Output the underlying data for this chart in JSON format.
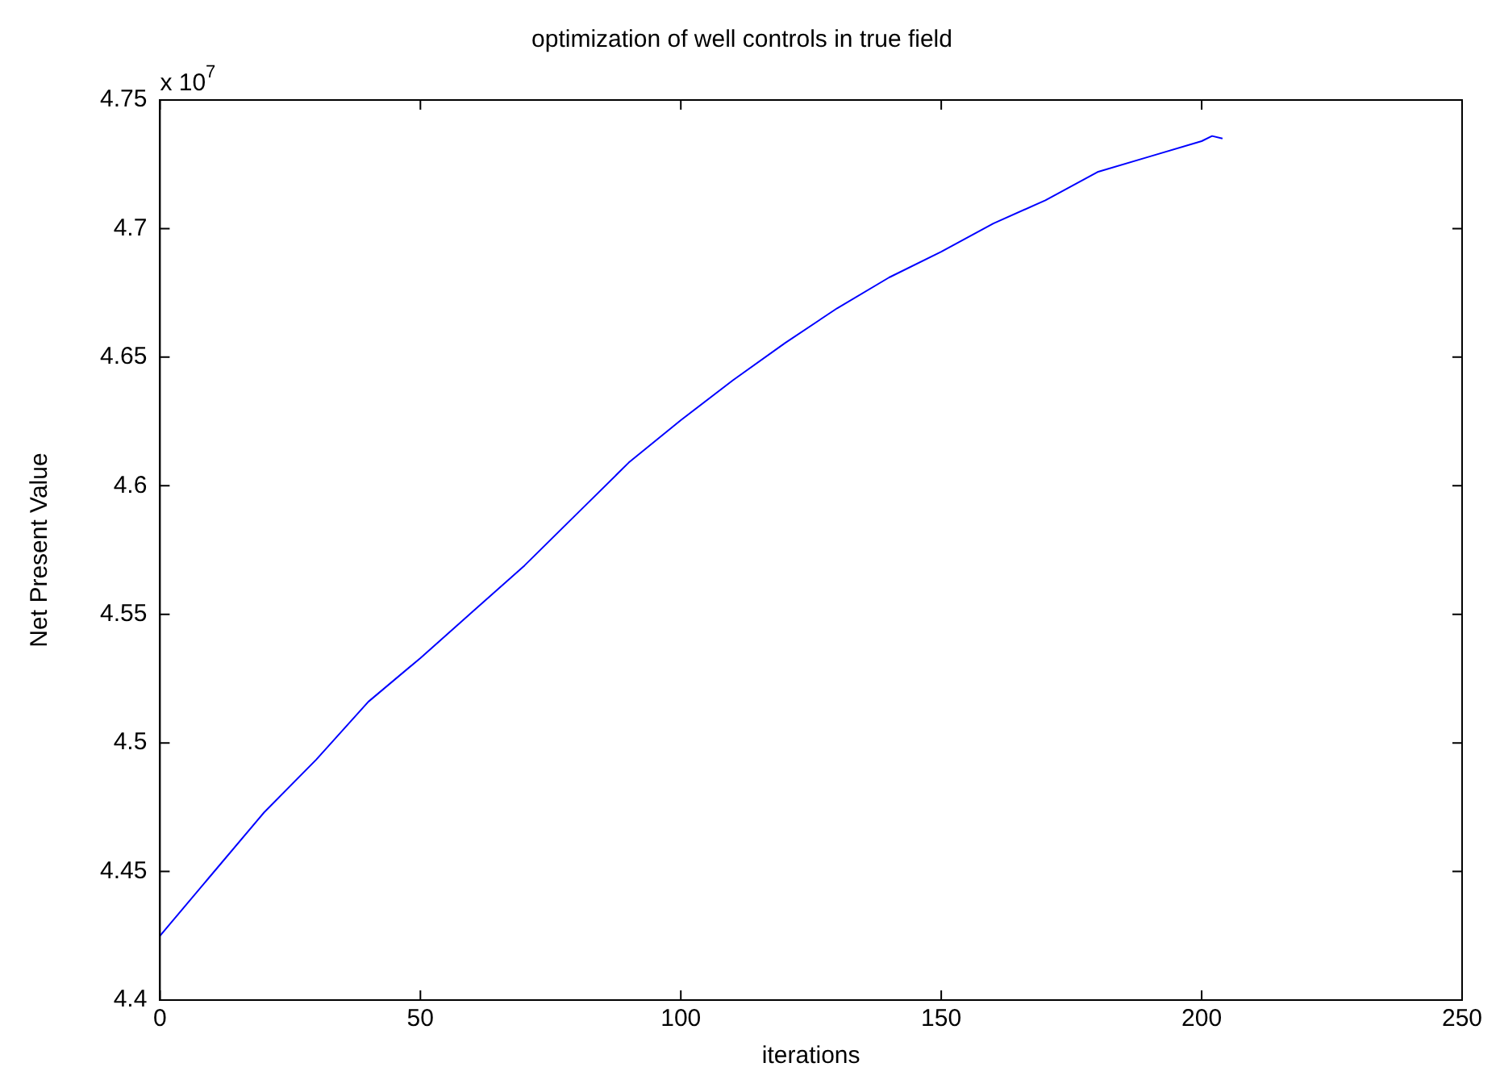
{
  "chart_data": {
    "type": "line",
    "title": "optimization of well controls in true field",
    "xlabel": "iterations",
    "ylabel": "Net Present Value",
    "annotations": [
      "x 10$^{7}$"
    ],
    "x": [
      0,
      10,
      20,
      30,
      40,
      50,
      60,
      70,
      80,
      90,
      100,
      110,
      120,
      130,
      140,
      150,
      160,
      170,
      180,
      190,
      200,
      202,
      204
    ],
    "series": [
      {
        "color": "#0000ff",
        "values": [
          4.425,
          4.449,
          4.473,
          4.4935,
          4.516,
          4.533,
          4.551,
          4.569,
          4.589,
          4.609,
          4.6255,
          4.641,
          4.6555,
          4.669,
          4.681,
          4.691,
          4.702,
          4.711,
          4.722,
          4.728,
          4.734,
          4.736,
          4.735
        ]
      }
    ],
    "xlim": [
      0,
      250
    ],
    "xticks": [
      0,
      50,
      100,
      150,
      200,
      250
    ],
    "ylim": [
      4.4,
      4.75
    ],
    "yticks": [
      4.4,
      4.45,
      4.5,
      4.55,
      4.6,
      4.65,
      4.7,
      4.75
    ],
    "grid": false,
    "legend": false,
    "marker": "none",
    "line_style": "solid"
  }
}
